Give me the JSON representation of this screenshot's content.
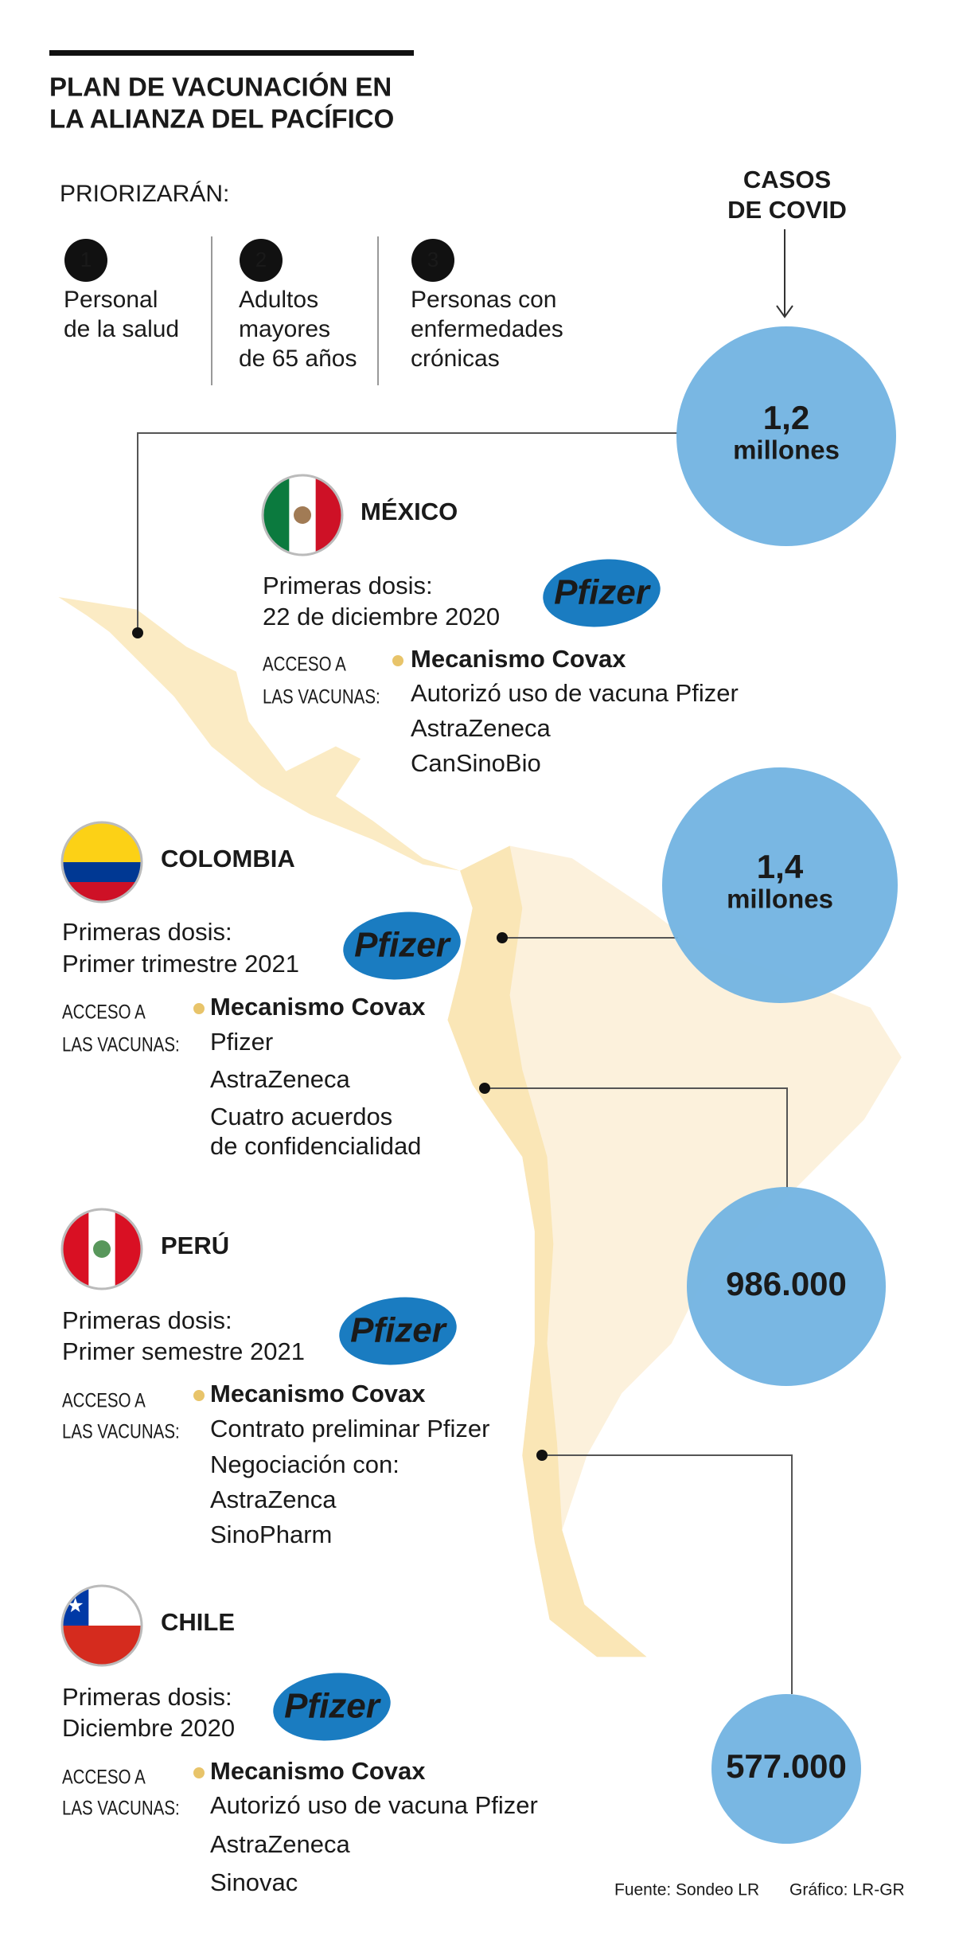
{
  "header": {
    "title": [
      "PLAN DE VACUNACIÓN EN",
      "LA ALIANZA DEL PACÍFICO"
    ],
    "priority_label": "PRIORIZARÁN:",
    "priorities": [
      {
        "number": "1",
        "lines": [
          "Personal",
          "de la salud"
        ]
      },
      {
        "number": "2",
        "lines": [
          "Adultos",
          "mayores",
          "de 65 años"
        ]
      },
      {
        "number": "3",
        "lines": [
          "Personas con",
          "enfermedades",
          "crónicas"
        ]
      }
    ],
    "cases_label": [
      "CASOS",
      "DE COVID"
    ]
  },
  "countries": [
    {
      "name": "MÉXICO",
      "doses_label": "Primeras dosis:",
      "doses_date": "22 de diciembre 2020",
      "logo": "Pfizer",
      "access_label": [
        "ACCESO A",
        "LAS VACUNAS:"
      ],
      "mechanism": "Mecanismo Covax",
      "items": [
        "Autorizó uso de vacuna Pfizer",
        "AstraZeneca",
        "CanSinoBio"
      ],
      "cases": [
        "1,2",
        "millones"
      ]
    },
    {
      "name": "COLOMBIA",
      "doses_label": "Primeras dosis:",
      "doses_date": "Primer trimestre 2021",
      "logo": "Pfizer",
      "access_label": [
        "ACCESO A",
        "LAS VACUNAS:"
      ],
      "mechanism": "Mecanismo Covax",
      "items": [
        "Pfizer",
        "AstraZeneca",
        "Cuatro acuerdos",
        "de confidencialidad"
      ],
      "cases": [
        "1,4",
        "millones"
      ]
    },
    {
      "name": "PERÚ",
      "doses_label": "Primeras dosis:",
      "doses_date": "Primer semestre 2021",
      "logo": "Pfizer",
      "access_label": [
        "ACCESO A",
        "LAS VACUNAS:"
      ],
      "mechanism": "Mecanismo Covax",
      "items": [
        "Contrato preliminar Pfizer",
        "Negociación con:",
        "AstraZenca",
        "SinoPharm"
      ],
      "cases": [
        "986.000"
      ]
    },
    {
      "name": "CHILE",
      "doses_label": "Primeras dosis:",
      "doses_date": "Diciembre 2020",
      "logo": "Pfizer",
      "access_label": [
        "ACCESO A",
        "LAS VACUNAS:"
      ],
      "mechanism": "Mecanismo Covax",
      "items": [
        "Autorizó uso de vacuna Pfizer",
        "AstraZeneca",
        "Sinovac"
      ],
      "cases": [
        "577.000"
      ]
    }
  ],
  "footer": {
    "source": "Fuente: Sondeo LR",
    "credit": "Gráfico: LR-GR"
  }
}
